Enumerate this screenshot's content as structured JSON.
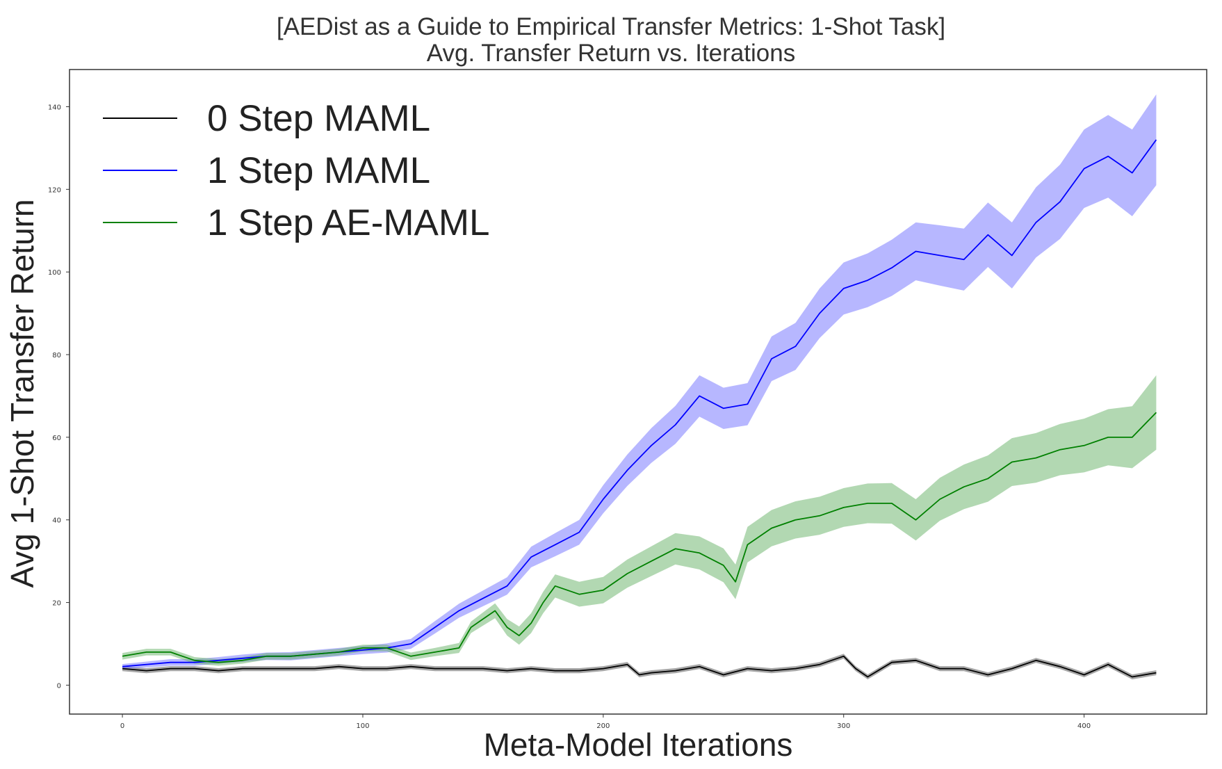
{
  "chart_data": {
    "type": "line",
    "title": "[AEDist as a Guide to Empirical Transfer Metrics: 1-Shot Task]",
    "subtitle": "Avg. Transfer Return vs. Iterations",
    "xlabel": "Meta-Model Iterations",
    "ylabel": "Avg 1-Shot Transfer Return",
    "xlim": [
      -22,
      451
    ],
    "ylim": [
      -7,
      149
    ],
    "xticks": [
      0,
      100,
      200,
      300,
      400
    ],
    "yticks": [
      0,
      20,
      40,
      60,
      80,
      100,
      120,
      140
    ],
    "grid": false,
    "legend_position": "top-left",
    "series": [
      {
        "name": "0 Step MAML",
        "color": "#000000",
        "band_color": "#808080",
        "x": [
          0,
          10,
          20,
          30,
          40,
          50,
          60,
          70,
          80,
          90,
          100,
          110,
          120,
          130,
          140,
          150,
          160,
          170,
          180,
          190,
          200,
          210,
          215,
          220,
          230,
          240,
          250,
          260,
          270,
          280,
          290,
          300,
          305,
          310,
          320,
          330,
          340,
          350,
          360,
          370,
          380,
          390,
          400,
          410,
          420,
          430
        ],
        "y": [
          4,
          3.5,
          4,
          4,
          3.5,
          4,
          4,
          4,
          4,
          4.5,
          4,
          4,
          4.5,
          4,
          4,
          4,
          3.5,
          4,
          3.5,
          3.5,
          4,
          5,
          2.5,
          3,
          3.5,
          4.5,
          2.5,
          4,
          3.5,
          4,
          5,
          7,
          4,
          2,
          5.5,
          6,
          4,
          4,
          2.5,
          4,
          6,
          4.5,
          2.5,
          5,
          2,
          3
        ],
        "band": [
          0.6,
          0.6,
          0.6,
          0.6,
          0.6,
          0.6,
          0.6,
          0.6,
          0.6,
          0.6,
          0.6,
          0.6,
          0.6,
          0.6,
          0.6,
          0.6,
          0.6,
          0.6,
          0.6,
          0.6,
          0.6,
          0.6,
          0.6,
          0.6,
          0.6,
          0.6,
          0.6,
          0.6,
          0.6,
          0.6,
          0.6,
          0.6,
          0.6,
          0.6,
          0.6,
          0.6,
          0.6,
          0.6,
          0.6,
          0.6,
          0.6,
          0.6,
          0.6,
          0.6,
          0.6,
          0.6
        ]
      },
      {
        "name": "1 Step MAML",
        "color": "#0000ff",
        "band_color": "#7070ff",
        "x": [
          0,
          10,
          20,
          30,
          40,
          50,
          60,
          70,
          80,
          90,
          100,
          110,
          120,
          130,
          140,
          150,
          160,
          170,
          180,
          190,
          200,
          210,
          220,
          230,
          240,
          250,
          260,
          270,
          280,
          290,
          300,
          310,
          320,
          330,
          340,
          350,
          360,
          370,
          380,
          390,
          400,
          410,
          420,
          430
        ],
        "y": [
          4.5,
          5,
          5.5,
          5.5,
          6,
          6.5,
          7,
          7,
          7.5,
          8,
          8.5,
          9,
          10,
          14,
          18,
          21,
          24,
          31,
          34,
          37,
          45,
          52,
          58,
          63,
          70,
          67,
          68,
          79,
          82,
          90,
          96,
          98,
          101,
          105,
          104,
          103,
          109,
          104,
          112,
          117,
          125,
          128,
          124,
          132
        ],
        "band": [
          0.6,
          0.7,
          0.8,
          0.8,
          0.8,
          0.9,
          0.9,
          1,
          1,
          1,
          1,
          1.1,
          1.2,
          1.5,
          1.7,
          1.9,
          2.1,
          2.5,
          2.8,
          3,
          3.4,
          3.8,
          4.2,
          4.6,
          5,
          5,
          5.1,
          5.4,
          5.7,
          6,
          6.3,
          6.5,
          6.8,
          7,
          7.3,
          7.5,
          7.8,
          8,
          8.5,
          9,
          9.5,
          10,
          10.5,
          11
        ]
      },
      {
        "name": "1 Step AE-MAML",
        "color": "#008000",
        "band_color": "#66b266",
        "x": [
          0,
          10,
          20,
          30,
          40,
          50,
          60,
          70,
          80,
          90,
          100,
          110,
          120,
          130,
          140,
          145,
          150,
          155,
          160,
          165,
          170,
          175,
          180,
          190,
          200,
          210,
          220,
          230,
          240,
          250,
          255,
          260,
          270,
          280,
          290,
          300,
          310,
          320,
          330,
          340,
          350,
          360,
          370,
          380,
          390,
          400,
          410,
          420,
          430
        ],
        "y": [
          7,
          8,
          8,
          6,
          5.5,
          6,
          7,
          7,
          7.5,
          8,
          9,
          9,
          7,
          8,
          9,
          14,
          16,
          18,
          14,
          12,
          15,
          20,
          24,
          22,
          23,
          27,
          30,
          33,
          32,
          29,
          25,
          34,
          38,
          40,
          41,
          43,
          44,
          44,
          40,
          45,
          48,
          50,
          54,
          55,
          57,
          58,
          60,
          60,
          66
        ],
        "band": [
          0.8,
          0.8,
          0.8,
          0.8,
          0.8,
          0.8,
          0.8,
          0.8,
          0.8,
          0.8,
          0.8,
          0.8,
          0.9,
          1,
          1.2,
          1.4,
          1.6,
          1.8,
          2,
          2.2,
          2.4,
          2.6,
          2.8,
          3,
          3.2,
          3.4,
          3.6,
          3.8,
          4,
          4.1,
          4.2,
          4.3,
          4.4,
          4.5,
          4.6,
          4.7,
          4.8,
          4.9,
          5,
          5.2,
          5.4,
          5.6,
          5.8,
          6,
          6.2,
          6.5,
          6.8,
          7.5,
          9
        ]
      }
    ]
  }
}
